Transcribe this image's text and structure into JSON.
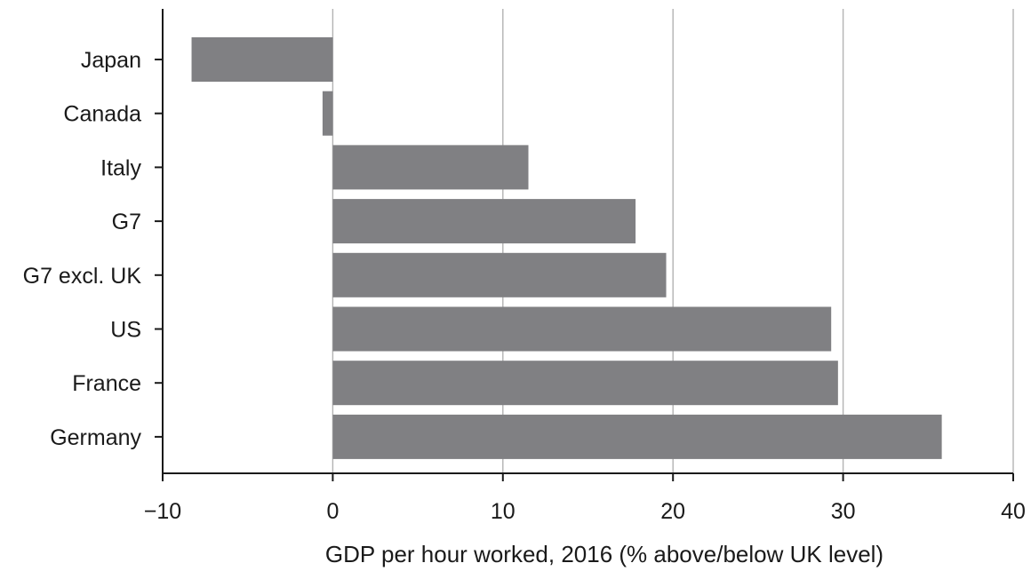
{
  "chart_data": {
    "type": "bar",
    "orientation": "horizontal",
    "categories": [
      "Japan",
      "Canada",
      "Italy",
      "G7",
      "G7 excl. UK",
      "US",
      "France",
      "Germany"
    ],
    "values": [
      -8.3,
      -0.6,
      11.5,
      17.8,
      19.6,
      29.3,
      29.7,
      35.8
    ],
    "xlabel": "GDP per hour worked, 2016 (% above/below UK level)",
    "ylabel": "",
    "xlim": [
      -10,
      40
    ],
    "xticks": [
      -10,
      0,
      10,
      20,
      30,
      40
    ],
    "xtick_labels": [
      "−10",
      "0",
      "10",
      "20",
      "30",
      "40"
    ],
    "grid": "vertical",
    "legend": "none",
    "colors": {
      "bar": "#808083",
      "grid": "#b3b3b3",
      "axis": "#1a1a1a"
    }
  }
}
